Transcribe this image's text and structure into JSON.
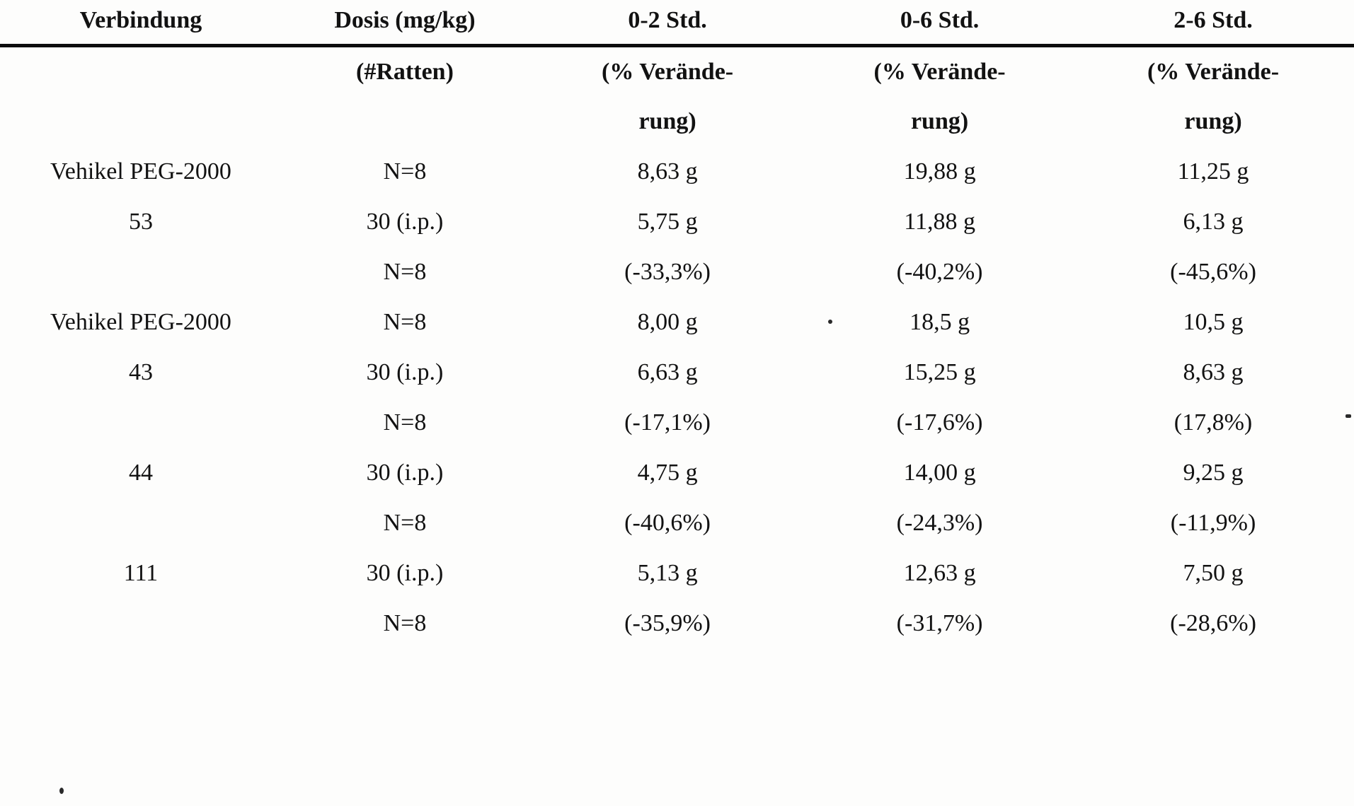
{
  "page": {
    "background_color": "#fdfdfc",
    "text_color": "#121212",
    "language": "de"
  },
  "table": {
    "columns": [
      "Verbindung",
      "Dosis (mg/kg)",
      "0-2 Std.",
      "0-6 Std.",
      "2-6 Std."
    ],
    "header_sub_rows": [
      [
        "",
        "(#Ratten)",
        "(% Verände-",
        "(% Verände-",
        "(% Verände-"
      ],
      [
        "",
        "",
        "rung)",
        "rung)",
        "rung)"
      ]
    ],
    "body_rows": [
      {
        "first_bold": false,
        "cells": [
          "Vehikel PEG-2000",
          "N=8",
          "8,63 g",
          "19,88 g",
          "11,25 g"
        ]
      },
      {
        "first_bold": true,
        "cells": [
          "53",
          "30 (i.p.)",
          "5,75 g",
          "11,88 g",
          "6,13 g"
        ]
      },
      {
        "first_bold": false,
        "cells": [
          "",
          "N=8",
          "(-33,3%)",
          "(-40,2%)",
          "(-45,6%)"
        ]
      },
      {
        "first_bold": false,
        "cells": [
          "Vehikel PEG-2000",
          "N=8",
          "8,00 g",
          "18,5 g",
          "10,5 g"
        ]
      },
      {
        "first_bold": true,
        "cells": [
          "43",
          "30 (i.p.)",
          "6,63 g",
          "15,25 g",
          "8,63 g"
        ]
      },
      {
        "first_bold": false,
        "cells": [
          "",
          "N=8",
          "(-17,1%)",
          "(-17,6%)",
          "(17,8%)"
        ]
      },
      {
        "first_bold": true,
        "cells": [
          "44",
          "30 (i.p.)",
          "4,75 g",
          "14,00 g",
          "9,25 g"
        ]
      },
      {
        "first_bold": false,
        "cells": [
          "",
          "N=8",
          "(-40,6%)",
          "(-24,3%)",
          "(-11,9%)"
        ]
      },
      {
        "first_bold": true,
        "cells": [
          "111",
          "30 (i.p.)",
          "5,13 g",
          "12,63 g",
          "7,50 g"
        ]
      },
      {
        "first_bold": false,
        "cells": [
          "",
          "N=8",
          "(-35,9%)",
          "(-31,7%)",
          "(-28,6%)"
        ]
      }
    ]
  }
}
